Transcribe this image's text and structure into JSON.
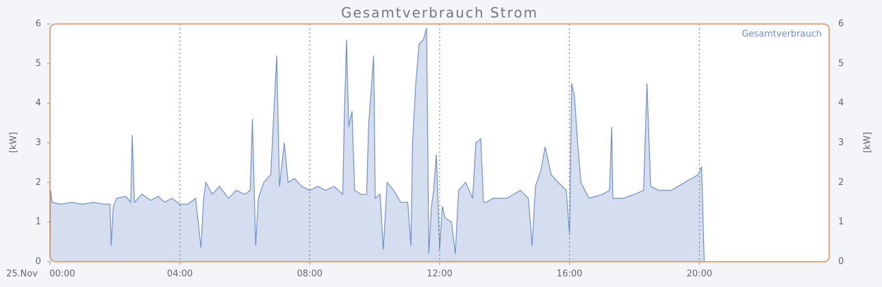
{
  "chart_data": {
    "type": "area",
    "title": "Gesamtverbrauch Strom",
    "date_label": "25.Nov",
    "y_label": "[kW]",
    "y2_label": "[kW]",
    "ylim": [
      0,
      6
    ],
    "yticks": [
      0,
      1,
      2,
      3,
      4,
      5,
      6
    ],
    "y2lim": [
      0,
      6
    ],
    "y2ticks": [
      0,
      1,
      2,
      3,
      4,
      5,
      6
    ],
    "xlim": [
      "00:00",
      "24:00"
    ],
    "xticks": [
      "00:00",
      "04:00",
      "08:00",
      "12:00",
      "16:00",
      "20:00"
    ],
    "grid": true,
    "legend": "top-right",
    "x": [
      "00:00",
      "00:01",
      "00:04",
      "00:20",
      "00:40",
      "01:00",
      "01:20",
      "01:40",
      "01:51",
      "01:53",
      "01:57",
      "02:03",
      "02:20",
      "02:29",
      "02:32",
      "02:36",
      "02:50",
      "03:06",
      "03:20",
      "03:32",
      "03:45",
      "04:00",
      "04:15",
      "04:29",
      "04:39",
      "04:44",
      "04:48",
      "05:00",
      "05:13",
      "05:30",
      "05:44",
      "06:00",
      "06:10",
      "06:14",
      "06:20",
      "06:25",
      "06:35",
      "06:48",
      "06:59",
      "07:04",
      "07:13",
      "07:20",
      "07:32",
      "07:45",
      "08:00",
      "08:15",
      "08:29",
      "08:45",
      "09:01",
      "09:04",
      "09:08",
      "09:12",
      "09:18",
      "09:23",
      "09:35",
      "09:45",
      "09:49",
      "09:58",
      "10:01",
      "10:10",
      "10:16",
      "10:23",
      "10:35",
      "10:48",
      "11:01",
      "11:07",
      "11:10",
      "11:16",
      "11:22",
      "11:30",
      "11:36",
      "11:40",
      "11:45",
      "11:49",
      "11:54",
      "12:00",
      "12:05",
      "12:10",
      "12:22",
      "12:29",
      "12:35",
      "12:48",
      "13:01",
      "13:07",
      "13:16",
      "13:21",
      "13:26",
      "13:39",
      "14:04",
      "14:29",
      "14:44",
      "14:51",
      "14:57",
      "15:07",
      "15:15",
      "15:26",
      "15:39",
      "15:54",
      "16:00",
      "16:04",
      "16:09",
      "16:15",
      "16:21",
      "16:36",
      "17:01",
      "17:14",
      "17:18",
      "17:20",
      "17:39",
      "18:00",
      "18:17",
      "18:23",
      "18:30",
      "18:45",
      "19:08",
      "19:33",
      "19:46",
      "19:58",
      "20:04",
      "20:09"
    ],
    "series": [
      {
        "name": "Gesamtverbrauch",
        "color": "#6f8fc9",
        "fill": "#d5deef",
        "values": [
          0.1,
          1.8,
          1.5,
          1.45,
          1.5,
          1.45,
          1.5,
          1.45,
          1.45,
          0.4,
          1.4,
          1.6,
          1.65,
          1.5,
          3.2,
          1.5,
          1.7,
          1.55,
          1.65,
          1.5,
          1.6,
          1.45,
          1.45,
          1.6,
          0.35,
          1.6,
          2.0,
          1.7,
          1.9,
          1.6,
          1.8,
          1.7,
          1.8,
          3.6,
          0.4,
          1.6,
          2.0,
          2.2,
          5.2,
          1.9,
          3.0,
          2.0,
          2.1,
          1.9,
          1.8,
          1.9,
          1.8,
          1.9,
          1.7,
          3.7,
          5.6,
          3.4,
          3.8,
          1.8,
          1.7,
          1.7,
          3.5,
          5.2,
          1.6,
          1.7,
          0.3,
          2.0,
          1.8,
          1.5,
          1.5,
          0.4,
          3.0,
          4.5,
          5.5,
          5.6,
          5.9,
          0.2,
          1.4,
          1.8,
          2.7,
          0.3,
          1.4,
          1.1,
          1.0,
          0.2,
          1.8,
          2.0,
          1.6,
          3.0,
          3.1,
          1.5,
          1.5,
          1.6,
          1.6,
          1.8,
          1.6,
          0.4,
          1.9,
          2.3,
          2.9,
          2.2,
          2.0,
          1.8,
          0.7,
          4.5,
          4.2,
          3.0,
          2.0,
          1.6,
          1.7,
          1.8,
          3.4,
          1.6,
          1.6,
          1.7,
          1.8,
          4.5,
          1.9,
          1.8,
          1.8,
          2.0,
          2.1,
          2.2,
          2.4,
          0
        ]
      }
    ]
  }
}
